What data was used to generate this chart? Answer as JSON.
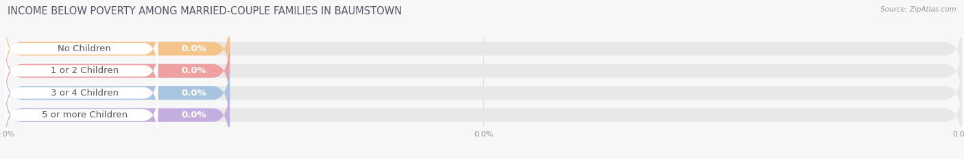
{
  "title": "INCOME BELOW POVERTY AMONG MARRIED-COUPLE FAMILIES IN BAUMSTOWN",
  "source": "Source: ZipAtlas.com",
  "categories": [
    "No Children",
    "1 or 2 Children",
    "3 or 4 Children",
    "5 or more Children"
  ],
  "values": [
    0.0,
    0.0,
    0.0,
    0.0
  ],
  "bar_colors": [
    "#f5c48a",
    "#f0a0a0",
    "#a8c4e0",
    "#c4aee0"
  ],
  "bg_color": "#f7f7f7",
  "bar_bg_color": "#e8e8e8",
  "figsize": [
    14.06,
    2.33
  ],
  "dpi": 100,
  "title_fontsize": 10.5,
  "bar_height": 0.62,
  "category_fontsize": 9.5,
  "value_fontsize": 9.5
}
